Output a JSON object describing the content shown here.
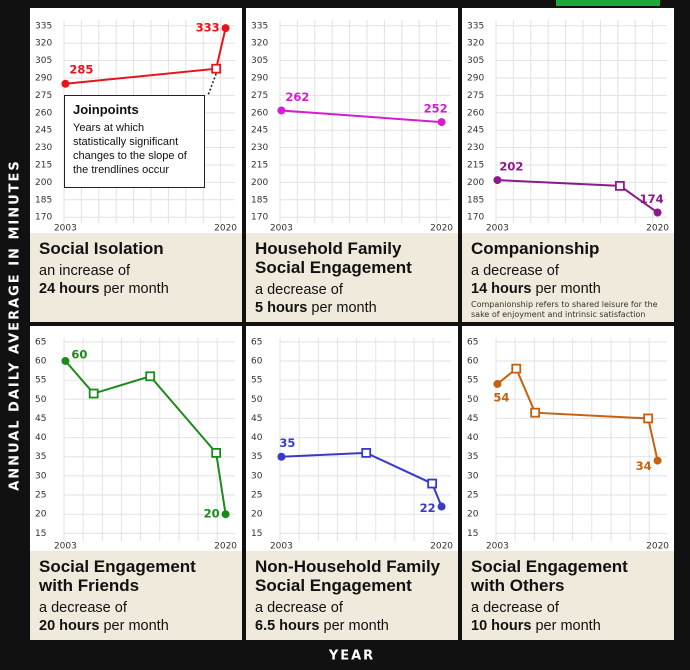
{
  "y_axis_label": "ANNUAL DAILY AVERAGE IN MINUTES",
  "x_axis_label": "YEAR",
  "chart_data": [
    {
      "type": "line",
      "title": "Social Isolation",
      "change_text": "an increase of",
      "change_amount": "24 hours",
      "change_unit": "per month",
      "color": "#e8141c",
      "x": [
        2003,
        2019,
        2020
      ],
      "values": [
        285,
        298,
        333
      ],
      "xlim": [
        2002,
        2021
      ],
      "xticks": [
        2003,
        2020
      ],
      "ylim": [
        165,
        340
      ],
      "yticks": [
        170,
        185,
        200,
        215,
        230,
        245,
        260,
        275,
        290,
        305,
        320,
        335
      ],
      "grid": true,
      "annotation": {
        "title": "Joinpoints",
        "text": "Years at which statistically significant changes to the slope of the trendlines occur"
      }
    },
    {
      "type": "line",
      "title": "Household Family Social Engagement",
      "change_text": "a decrease of",
      "change_amount": "5 hours",
      "change_unit": "per month",
      "color": "#d41cd4",
      "x": [
        2003,
        2020
      ],
      "values": [
        262,
        252
      ],
      "xlim": [
        2002,
        2021
      ],
      "xticks": [
        2003,
        2020
      ],
      "ylim": [
        165,
        340
      ],
      "yticks": [
        170,
        185,
        200,
        215,
        230,
        245,
        260,
        275,
        290,
        305,
        320,
        335
      ],
      "grid": true
    },
    {
      "type": "line",
      "title": "Companionship",
      "change_text": "a decrease of",
      "change_amount": "14 hours",
      "change_unit": "per month",
      "color": "#8b1a8b",
      "note": "Companionship refers to shared leisure for the sake of enjoyment and intrinsic satisfaction",
      "x": [
        2003,
        2016,
        2020
      ],
      "values": [
        202,
        197,
        174
      ],
      "xlim": [
        2002,
        2021
      ],
      "xticks": [
        2003,
        2020
      ],
      "ylim": [
        165,
        340
      ],
      "yticks": [
        170,
        185,
        200,
        215,
        230,
        245,
        260,
        275,
        290,
        305,
        320,
        335
      ],
      "grid": true
    },
    {
      "type": "line",
      "title": "Social Engagement with Friends",
      "change_text": "a decrease of",
      "change_amount": "20 hours",
      "change_unit": "per month",
      "color": "#1a8a1a",
      "x": [
        2003,
        2006,
        2012,
        2019,
        2020
      ],
      "values": [
        60,
        51.5,
        56,
        36,
        20
      ],
      "xlim": [
        2002,
        2021
      ],
      "xticks": [
        2003,
        2020
      ],
      "ylim": [
        13,
        66
      ],
      "yticks": [
        15,
        20,
        25,
        30,
        35,
        40,
        45,
        50,
        55,
        60,
        65
      ],
      "grid": true
    },
    {
      "type": "line",
      "title": "Non-Household Family Social Engagement",
      "change_text": "a decrease of",
      "change_amount": "6.5 hours",
      "change_unit": "per month",
      "color": "#3a3ac8",
      "x": [
        2003,
        2012,
        2019,
        2020
      ],
      "values": [
        35,
        36,
        28,
        22
      ],
      "xlim": [
        2002,
        2021
      ],
      "xticks": [
        2003,
        2020
      ],
      "ylim": [
        13,
        66
      ],
      "yticks": [
        15,
        20,
        25,
        30,
        35,
        40,
        45,
        50,
        55,
        60,
        65
      ],
      "grid": true
    },
    {
      "type": "line",
      "title": "Social Engagement with Others",
      "change_text": "a decrease of",
      "change_amount": "10 hours",
      "change_unit": "per month",
      "color": "#c8600e",
      "x": [
        2003,
        2005,
        2007,
        2019,
        2020
      ],
      "values": [
        54,
        58,
        46.5,
        45,
        34
      ],
      "xlim": [
        2002,
        2021
      ],
      "xticks": [
        2003,
        2020
      ],
      "ylim": [
        13,
        66
      ],
      "yticks": [
        15,
        20,
        25,
        30,
        35,
        40,
        45,
        50,
        55,
        60,
        65
      ],
      "grid": true
    }
  ]
}
